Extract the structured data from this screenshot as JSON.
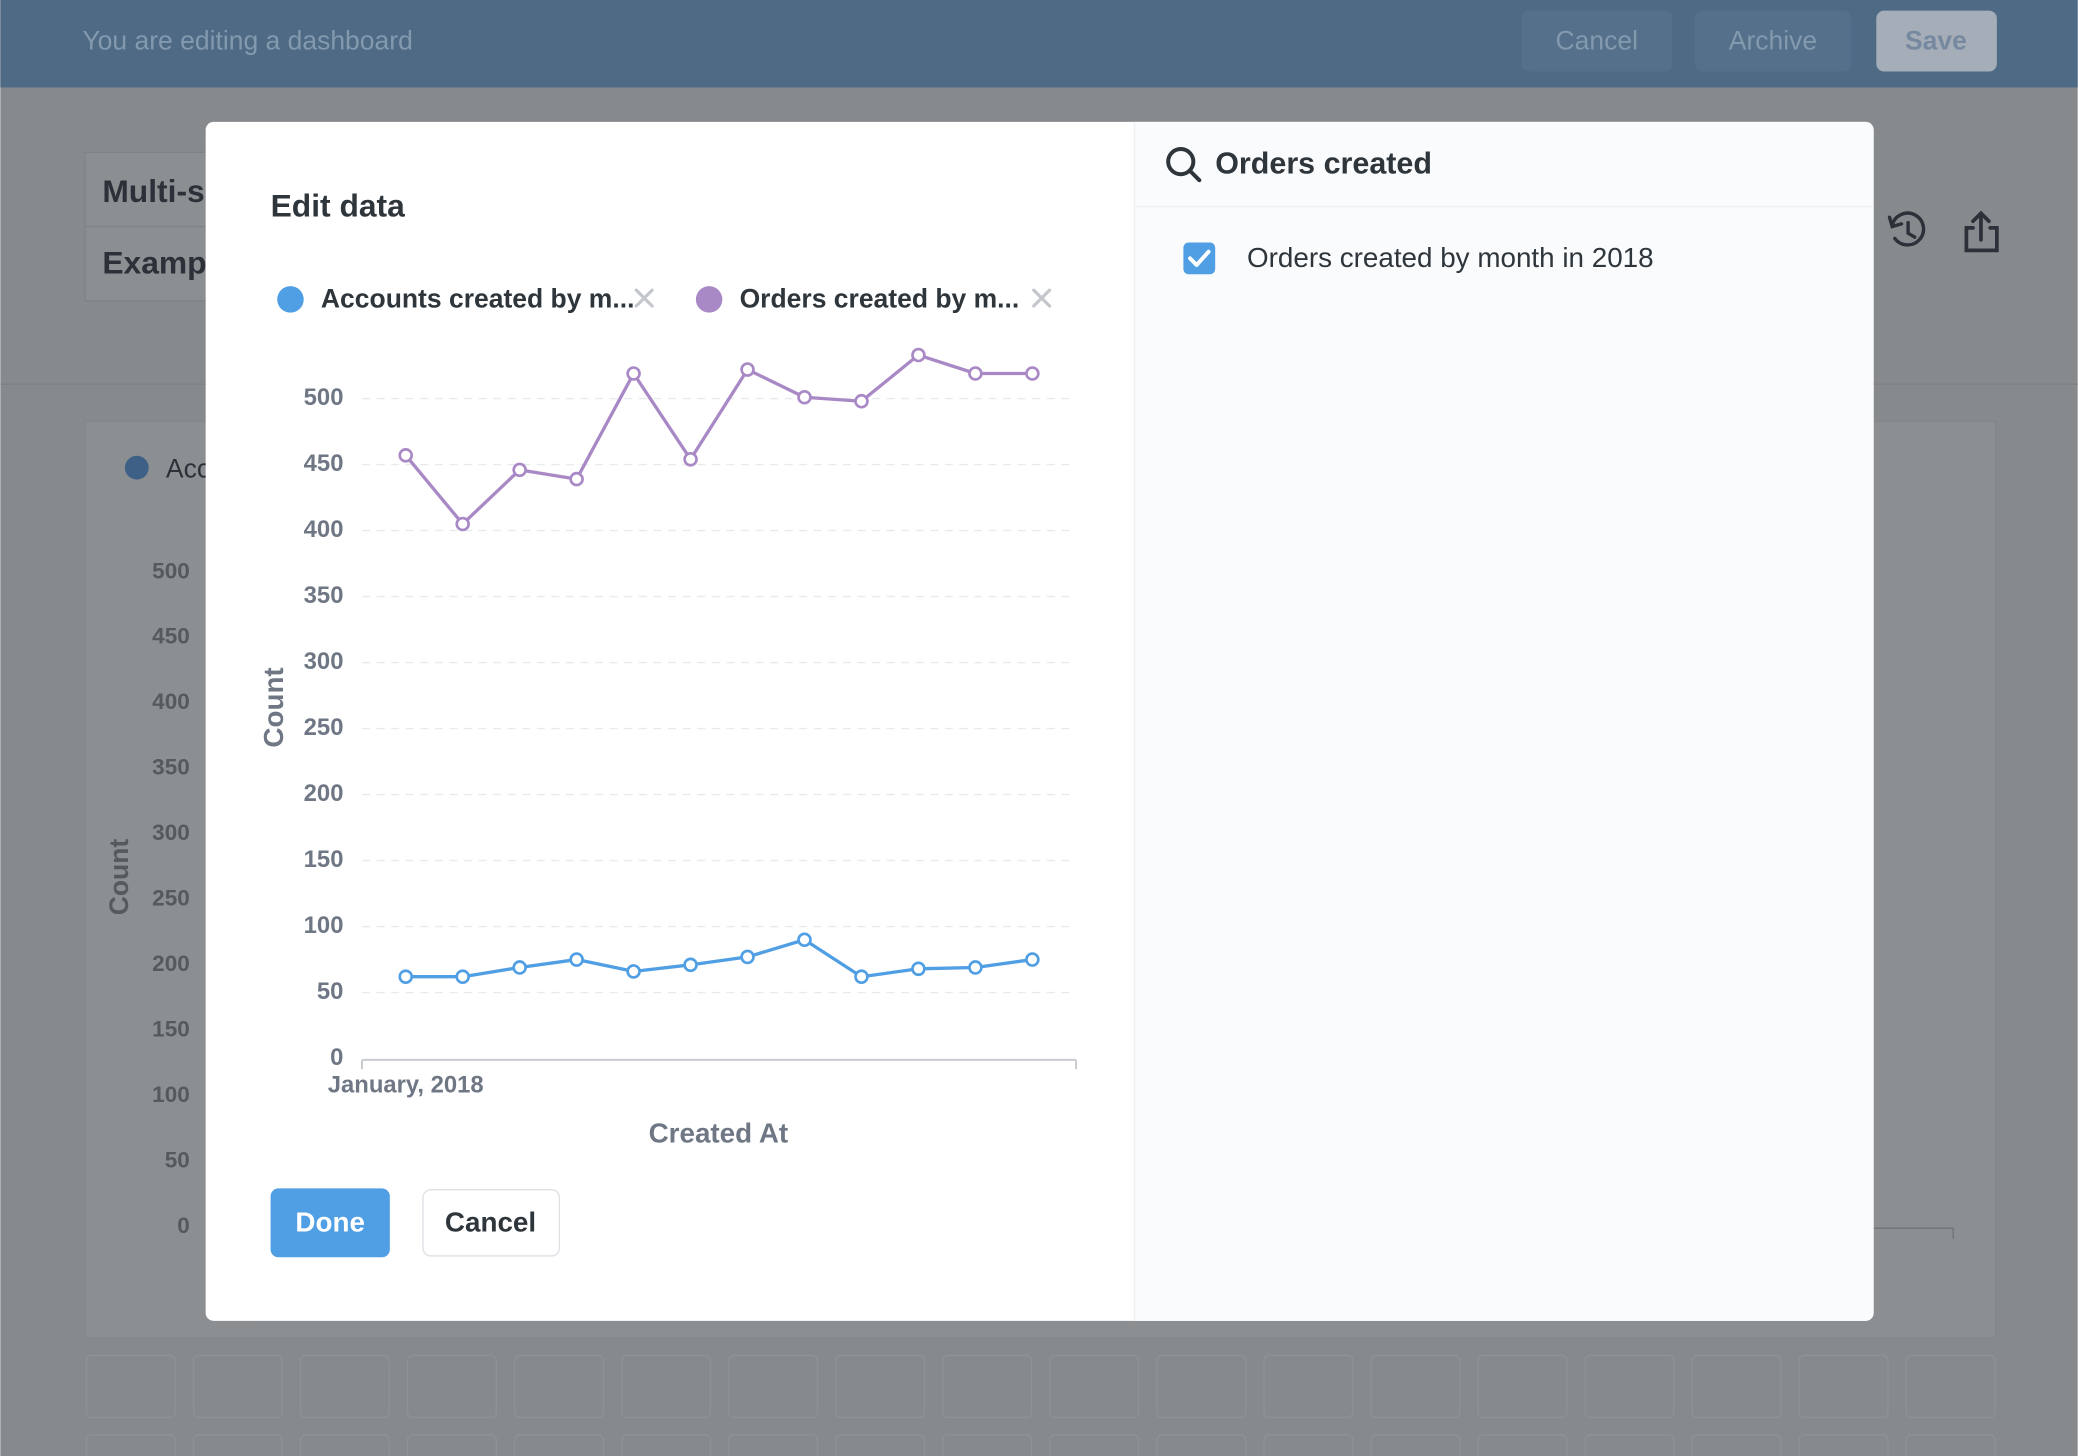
{
  "header": {
    "title": "You are editing a dashboard",
    "buttons": [
      "Cancel",
      "Archive",
      "Save"
    ]
  },
  "background": {
    "card_title": "Multi-s",
    "card_subtitle": "Exampl",
    "legend": "Acc",
    "y_label": "Count",
    "yticks": [
      500,
      450,
      400,
      350,
      300,
      250,
      200,
      150,
      100,
      50,
      0
    ]
  },
  "modal": {
    "title": "Edit data",
    "chart": {
      "type": "line",
      "x_label": "Created At",
      "y_label": "Count",
      "categories": [
        "January, 2018",
        null,
        null,
        null,
        null,
        null,
        null,
        null,
        null,
        null,
        null,
        null
      ],
      "series": [
        {
          "name": "Accounts created by m...",
          "color": "#509ee3",
          "values": [
            62,
            62,
            69,
            75,
            66,
            71,
            77,
            90,
            62,
            68,
            69,
            75
          ]
        },
        {
          "name": "Orders created by m...",
          "color": "#a989c5",
          "values": [
            457,
            405,
            446,
            439,
            519,
            454,
            522,
            501,
            498,
            533,
            519,
            519
          ]
        }
      ],
      "ylim": [
        0,
        540
      ],
      "yticks": [
        0,
        50,
        100,
        150,
        200,
        250,
        300,
        350,
        400,
        450,
        500
      ],
      "grid": true
    },
    "buttons": {
      "done": "Done",
      "cancel": "Cancel"
    },
    "sidebar": {
      "search": "Orders created",
      "items": [
        {
          "label": "Orders created by month in 2018",
          "checked": true
        }
      ]
    }
  }
}
